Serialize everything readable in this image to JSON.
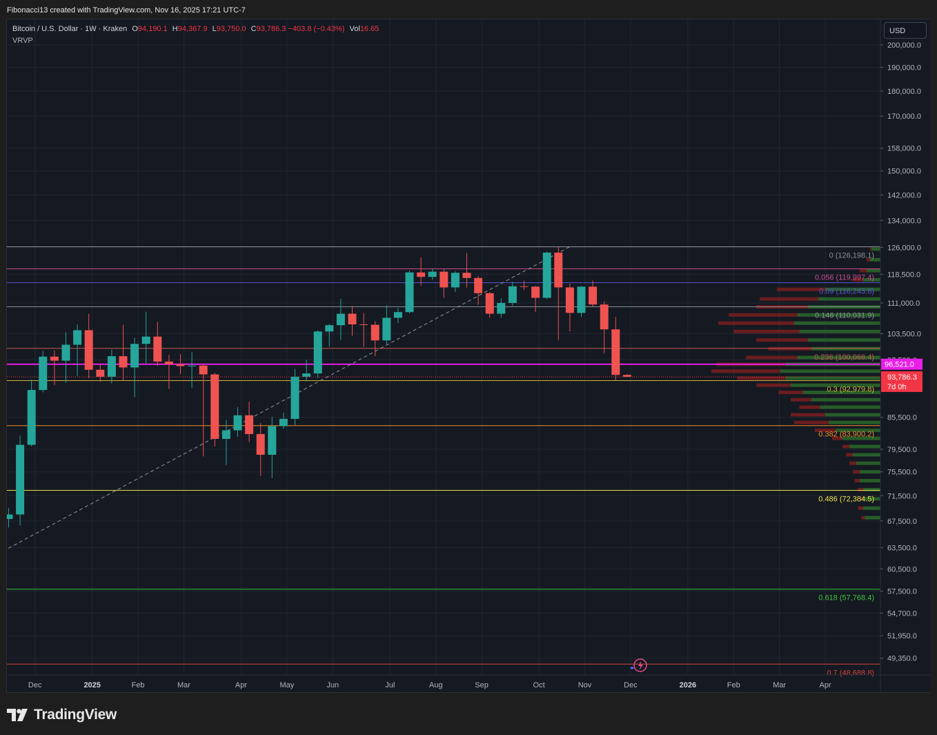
{
  "header": {
    "attribution": "Fibonacci13 created with TradingView.com, Nov 16, 2025 17:21 UTC-7",
    "symbol": "Bitcoin / U.S. Dollar · 1W · Kraken",
    "open_label": "O",
    "open": "94,190.1",
    "high_label": "H",
    "high": "94,367.9",
    "low_label": "L",
    "low": "93,750.0",
    "close_label": "C",
    "close": "93,786.3",
    "change": "−403.8 (−0.43%)",
    "vol_label": "Vol",
    "vol": "16.65",
    "indicator": "VRVP",
    "currency": "USD"
  },
  "brand": {
    "name": "TradingView",
    "logo_icon": "tradingview-logo-icon"
  },
  "colors": {
    "up": "#26a69a",
    "down": "#ef5350",
    "background": "#151922",
    "grid": "#232733",
    "axis_text": "#b2b5be",
    "accent": "#e91ee8"
  },
  "chart_data": {
    "type": "candlestick",
    "title": "Bitcoin / U.S. Dollar · 1W · Kraken",
    "y_scale": "log",
    "ylim": [
      47500,
      212000
    ],
    "y_ticks": [
      {
        "v": 200000,
        "label": "200,000.0"
      },
      {
        "v": 190000,
        "label": "190,000.0"
      },
      {
        "v": 180000,
        "label": "180,000.0"
      },
      {
        "v": 170000,
        "label": "170,000.0"
      },
      {
        "v": 158000,
        "label": "158,000.0"
      },
      {
        "v": 150000,
        "label": "150,000.0"
      },
      {
        "v": 142000,
        "label": "142,000.0"
      },
      {
        "v": 134000,
        "label": "134,000.0"
      },
      {
        "v": 126000,
        "label": "126,000.0"
      },
      {
        "v": 118500,
        "label": "118,500.0"
      },
      {
        "v": 111000,
        "label": "111,000.0"
      },
      {
        "v": 103500,
        "label": "103,500.0"
      },
      {
        "v": 97500,
        "label": "97,500.0"
      },
      {
        "v": 85500,
        "label": "85,500.0"
      },
      {
        "v": 79500,
        "label": "79,500.0"
      },
      {
        "v": 75500,
        "label": "75,500.0"
      },
      {
        "v": 71500,
        "label": "71,500.0"
      },
      {
        "v": 67500,
        "label": "67,500.0"
      },
      {
        "v": 63500,
        "label": "63,500.0"
      },
      {
        "v": 60500,
        "label": "60,500.0"
      },
      {
        "v": 57500,
        "label": "57,500.0"
      },
      {
        "v": 54700,
        "label": "54,700.0"
      },
      {
        "v": 51950,
        "label": "51,950.0"
      },
      {
        "v": 49350,
        "label": "49,350.0"
      }
    ],
    "x_ticks": [
      {
        "label": "Nov",
        "week": -1.7,
        "bold": false
      },
      {
        "label": "Dec",
        "week": 2.3,
        "bold": false
      },
      {
        "label": "2025",
        "week": 7.3,
        "bold": true
      },
      {
        "label": "Feb",
        "week": 11.3,
        "bold": false
      },
      {
        "label": "Mar",
        "week": 15.3,
        "bold": false
      },
      {
        "label": "Apr",
        "week": 20.3,
        "bold": false
      },
      {
        "label": "May",
        "week": 24.3,
        "bold": false
      },
      {
        "label": "Jun",
        "week": 28.3,
        "bold": false
      },
      {
        "label": "Jul",
        "week": 33.3,
        "bold": false
      },
      {
        "label": "Aug",
        "week": 37.3,
        "bold": false
      },
      {
        "label": "Sep",
        "week": 41.3,
        "bold": false
      },
      {
        "label": "Oct",
        "week": 46.3,
        "bold": false
      },
      {
        "label": "Nov",
        "week": 50.3,
        "bold": false
      },
      {
        "label": "Dec",
        "week": 54.3,
        "bold": false
      },
      {
        "label": "2026",
        "week": 59.3,
        "bold": true
      },
      {
        "label": "Feb",
        "week": 63.3,
        "bold": false
      },
      {
        "label": "Mar",
        "week": 67.3,
        "bold": false
      },
      {
        "label": "Apr",
        "week": 71.3,
        "bold": false
      }
    ],
    "candles": [
      {
        "o": 67800,
        "h": 69500,
        "l": 66500,
        "c": 68500
      },
      {
        "o": 68500,
        "h": 82000,
        "l": 66800,
        "c": 80300
      },
      {
        "o": 80300,
        "h": 93200,
        "l": 80000,
        "c": 91000
      },
      {
        "o": 91000,
        "h": 99500,
        "l": 90500,
        "c": 98200
      },
      {
        "o": 98200,
        "h": 99600,
        "l": 92000,
        "c": 97300
      },
      {
        "o": 97300,
        "h": 103800,
        "l": 92500,
        "c": 100900
      },
      {
        "o": 100900,
        "h": 105700,
        "l": 94000,
        "c": 104300
      },
      {
        "o": 104300,
        "h": 108300,
        "l": 93500,
        "c": 95300
      },
      {
        "o": 95300,
        "h": 96500,
        "l": 92700,
        "c": 93800
      },
      {
        "o": 93800,
        "h": 99800,
        "l": 92400,
        "c": 98300
      },
      {
        "o": 98300,
        "h": 105600,
        "l": 93000,
        "c": 95800
      },
      {
        "o": 95800,
        "h": 102500,
        "l": 89500,
        "c": 101100
      },
      {
        "o": 101100,
        "h": 108800,
        "l": 96700,
        "c": 102800
      },
      {
        "o": 102800,
        "h": 106300,
        "l": 96200,
        "c": 97100
      },
      {
        "o": 97100,
        "h": 98600,
        "l": 91200,
        "c": 96500
      },
      {
        "o": 96500,
        "h": 98800,
        "l": 94300,
        "c": 96100
      },
      {
        "o": 96100,
        "h": 99200,
        "l": 91500,
        "c": 96200
      },
      {
        "o": 96200,
        "h": 96500,
        "l": 78200,
        "c": 94300
      },
      {
        "o": 94300,
        "h": 94600,
        "l": 80000,
        "c": 81400
      },
      {
        "o": 81400,
        "h": 85000,
        "l": 76700,
        "c": 83000
      },
      {
        "o": 83000,
        "h": 87500,
        "l": 81800,
        "c": 85900
      },
      {
        "o": 85900,
        "h": 88600,
        "l": 80800,
        "c": 82300
      },
      {
        "o": 82300,
        "h": 84400,
        "l": 74800,
        "c": 78500
      },
      {
        "o": 78500,
        "h": 85600,
        "l": 74400,
        "c": 83800
      },
      {
        "o": 83800,
        "h": 86400,
        "l": 83300,
        "c": 85200
      },
      {
        "o": 85200,
        "h": 95500,
        "l": 84000,
        "c": 93800
      },
      {
        "o": 93800,
        "h": 97500,
        "l": 92800,
        "c": 94500
      },
      {
        "o": 94500,
        "h": 104300,
        "l": 93500,
        "c": 104000
      },
      {
        "o": 104000,
        "h": 105800,
        "l": 100500,
        "c": 105500
      },
      {
        "o": 105500,
        "h": 112000,
        "l": 102000,
        "c": 108300
      },
      {
        "o": 108300,
        "h": 110200,
        "l": 103000,
        "c": 105700
      },
      {
        "o": 105700,
        "h": 108500,
        "l": 100400,
        "c": 105600
      },
      {
        "o": 105600,
        "h": 106500,
        "l": 98300,
        "c": 101900
      },
      {
        "o": 101900,
        "h": 110500,
        "l": 101000,
        "c": 107300
      },
      {
        "o": 107300,
        "h": 109700,
        "l": 106000,
        "c": 108700
      },
      {
        "o": 108700,
        "h": 119500,
        "l": 108400,
        "c": 119000
      },
      {
        "o": 119000,
        "h": 123200,
        "l": 115500,
        "c": 117800
      },
      {
        "o": 117800,
        "h": 120100,
        "l": 117000,
        "c": 119200
      },
      {
        "o": 119200,
        "h": 120000,
        "l": 112300,
        "c": 115000
      },
      {
        "o": 115000,
        "h": 119300,
        "l": 113800,
        "c": 118900
      },
      {
        "o": 118900,
        "h": 124400,
        "l": 115000,
        "c": 117500
      },
      {
        "o": 117500,
        "h": 118000,
        "l": 110500,
        "c": 113500
      },
      {
        "o": 113500,
        "h": 113800,
        "l": 107300,
        "c": 108300
      },
      {
        "o": 108300,
        "h": 112200,
        "l": 107300,
        "c": 111000
      },
      {
        "o": 111000,
        "h": 116500,
        "l": 110300,
        "c": 115300
      },
      {
        "o": 115300,
        "h": 116800,
        "l": 114300,
        "c": 115200
      },
      {
        "o": 115200,
        "h": 115400,
        "l": 108700,
        "c": 112300
      },
      {
        "o": 112300,
        "h": 124800,
        "l": 112000,
        "c": 124500
      },
      {
        "o": 124500,
        "h": 126200,
        "l": 102000,
        "c": 115000
      },
      {
        "o": 115000,
        "h": 116000,
        "l": 104000,
        "c": 108500
      },
      {
        "o": 108500,
        "h": 115400,
        "l": 107500,
        "c": 115200
      },
      {
        "o": 115200,
        "h": 116800,
        "l": 110000,
        "c": 110600
      },
      {
        "o": 110600,
        "h": 111400,
        "l": 99000,
        "c": 104500
      },
      {
        "o": 104500,
        "h": 107500,
        "l": 93000,
        "c": 94190
      },
      {
        "o": 94190.1,
        "h": 94367.9,
        "l": 93750.0,
        "c": 93786.3
      }
    ],
    "fib_levels": [
      {
        "ratio": "0",
        "value": 126198.1,
        "label": "0 (126,198.1)",
        "color": "#8c8f99"
      },
      {
        "ratio": "0.056",
        "value": 119997.4,
        "label": "0.056 (119,997.4)",
        "color": "#c74c8e"
      },
      {
        "ratio": "0.09",
        "value": 116243.8,
        "label": "0.09 (116,243.8)",
        "color": "#5855d6"
      },
      {
        "ratio": "0.146",
        "value": 110031.9,
        "label": "0.146 (110,031.9)",
        "color": "#8c8f99"
      },
      {
        "ratio": "0.236",
        "value": 100066.4,
        "label": "0.236 (100,066.4)",
        "color": "#c75a52"
      },
      {
        "ratio": "0.3",
        "value": 92979.8,
        "label": "0.3 (92,979.8)",
        "color": "#d4b23a"
      },
      {
        "ratio": "0.382",
        "value": 83900.2,
        "label": "0.382 (83,900.2)",
        "color": "#f28c28"
      },
      {
        "ratio": "0.486",
        "value": 72384.5,
        "label": "0.486 (72,384.5)",
        "color": "#e8e04a"
      },
      {
        "ratio": "0.618",
        "value": 57768.4,
        "label": "0.618 (57,768.4)",
        "color": "#3fc43f"
      },
      {
        "ratio": "0.7",
        "value": 48688.8,
        "label": "0.7 (48,688.8)",
        "color": "#d6443c"
      }
    ],
    "horizontal_line": {
      "value": 96521.0,
      "label": "96,521.0",
      "color": "#e91ee8"
    },
    "last_price": {
      "value": 93786.3,
      "label": "93,786.3",
      "countdown": "7d 0h",
      "color": "#f23645"
    },
    "trend_line": {
      "from_week": -0.5,
      "from_price": 63000,
      "to_week": 49,
      "to_price": 126198.1
    },
    "volume_profile": {
      "type": "VRVP",
      "rows": [
        {
          "price": 125500,
          "up": 0.05,
          "down": 0.01
        },
        {
          "price": 122500,
          "up": 0.06,
          "down": 0.02
        },
        {
          "price": 119500,
          "up": 0.08,
          "down": 0.04
        },
        {
          "price": 117000,
          "up": 0.1,
          "down": 0.06
        },
        {
          "price": 114500,
          "up": 0.32,
          "down": 0.28
        },
        {
          "price": 112000,
          "up": 0.36,
          "down": 0.34
        },
        {
          "price": 110000,
          "up": 0.42,
          "down": 0.3
        },
        {
          "price": 108000,
          "up": 0.48,
          "down": 0.4
        },
        {
          "price": 106000,
          "up": 0.5,
          "down": 0.44
        },
        {
          "price": 104000,
          "up": 0.47,
          "down": 0.38
        },
        {
          "price": 102000,
          "up": 0.42,
          "down": 0.3
        },
        {
          "price": 100000,
          "up": 0.4,
          "down": 0.25
        },
        {
          "price": 98000,
          "up": 0.48,
          "down": 0.3
        },
        {
          "price": 96500,
          "up": 0.55,
          "down": 0.4
        },
        {
          "price": 95000,
          "up": 0.58,
          "down": 0.4
        },
        {
          "price": 93500,
          "up": 0.55,
          "down": 0.28
        },
        {
          "price": 92000,
          "up": 0.52,
          "down": 0.2
        },
        {
          "price": 90500,
          "up": 0.45,
          "down": 0.14
        },
        {
          "price": 89000,
          "up": 0.4,
          "down": 0.12
        },
        {
          "price": 87500,
          "up": 0.35,
          "down": 0.12
        },
        {
          "price": 86000,
          "up": 0.32,
          "down": 0.2
        },
        {
          "price": 84500,
          "up": 0.3,
          "down": 0.2
        },
        {
          "price": 83000,
          "up": 0.26,
          "down": 0.12
        },
        {
          "price": 81500,
          "up": 0.22,
          "down": 0.06
        },
        {
          "price": 80000,
          "up": 0.18,
          "down": 0.04
        },
        {
          "price": 78500,
          "up": 0.16,
          "down": 0.04
        },
        {
          "price": 77000,
          "up": 0.14,
          "down": 0.04
        },
        {
          "price": 75500,
          "up": 0.12,
          "down": 0.04
        },
        {
          "price": 74000,
          "up": 0.12,
          "down": 0.03
        },
        {
          "price": 72500,
          "up": 0.1,
          "down": 0.03
        },
        {
          "price": 71000,
          "up": 0.1,
          "down": 0.02
        },
        {
          "price": 69500,
          "up": 0.1,
          "down": 0.03
        },
        {
          "price": 68000,
          "up": 0.09,
          "down": 0.02
        }
      ]
    }
  }
}
